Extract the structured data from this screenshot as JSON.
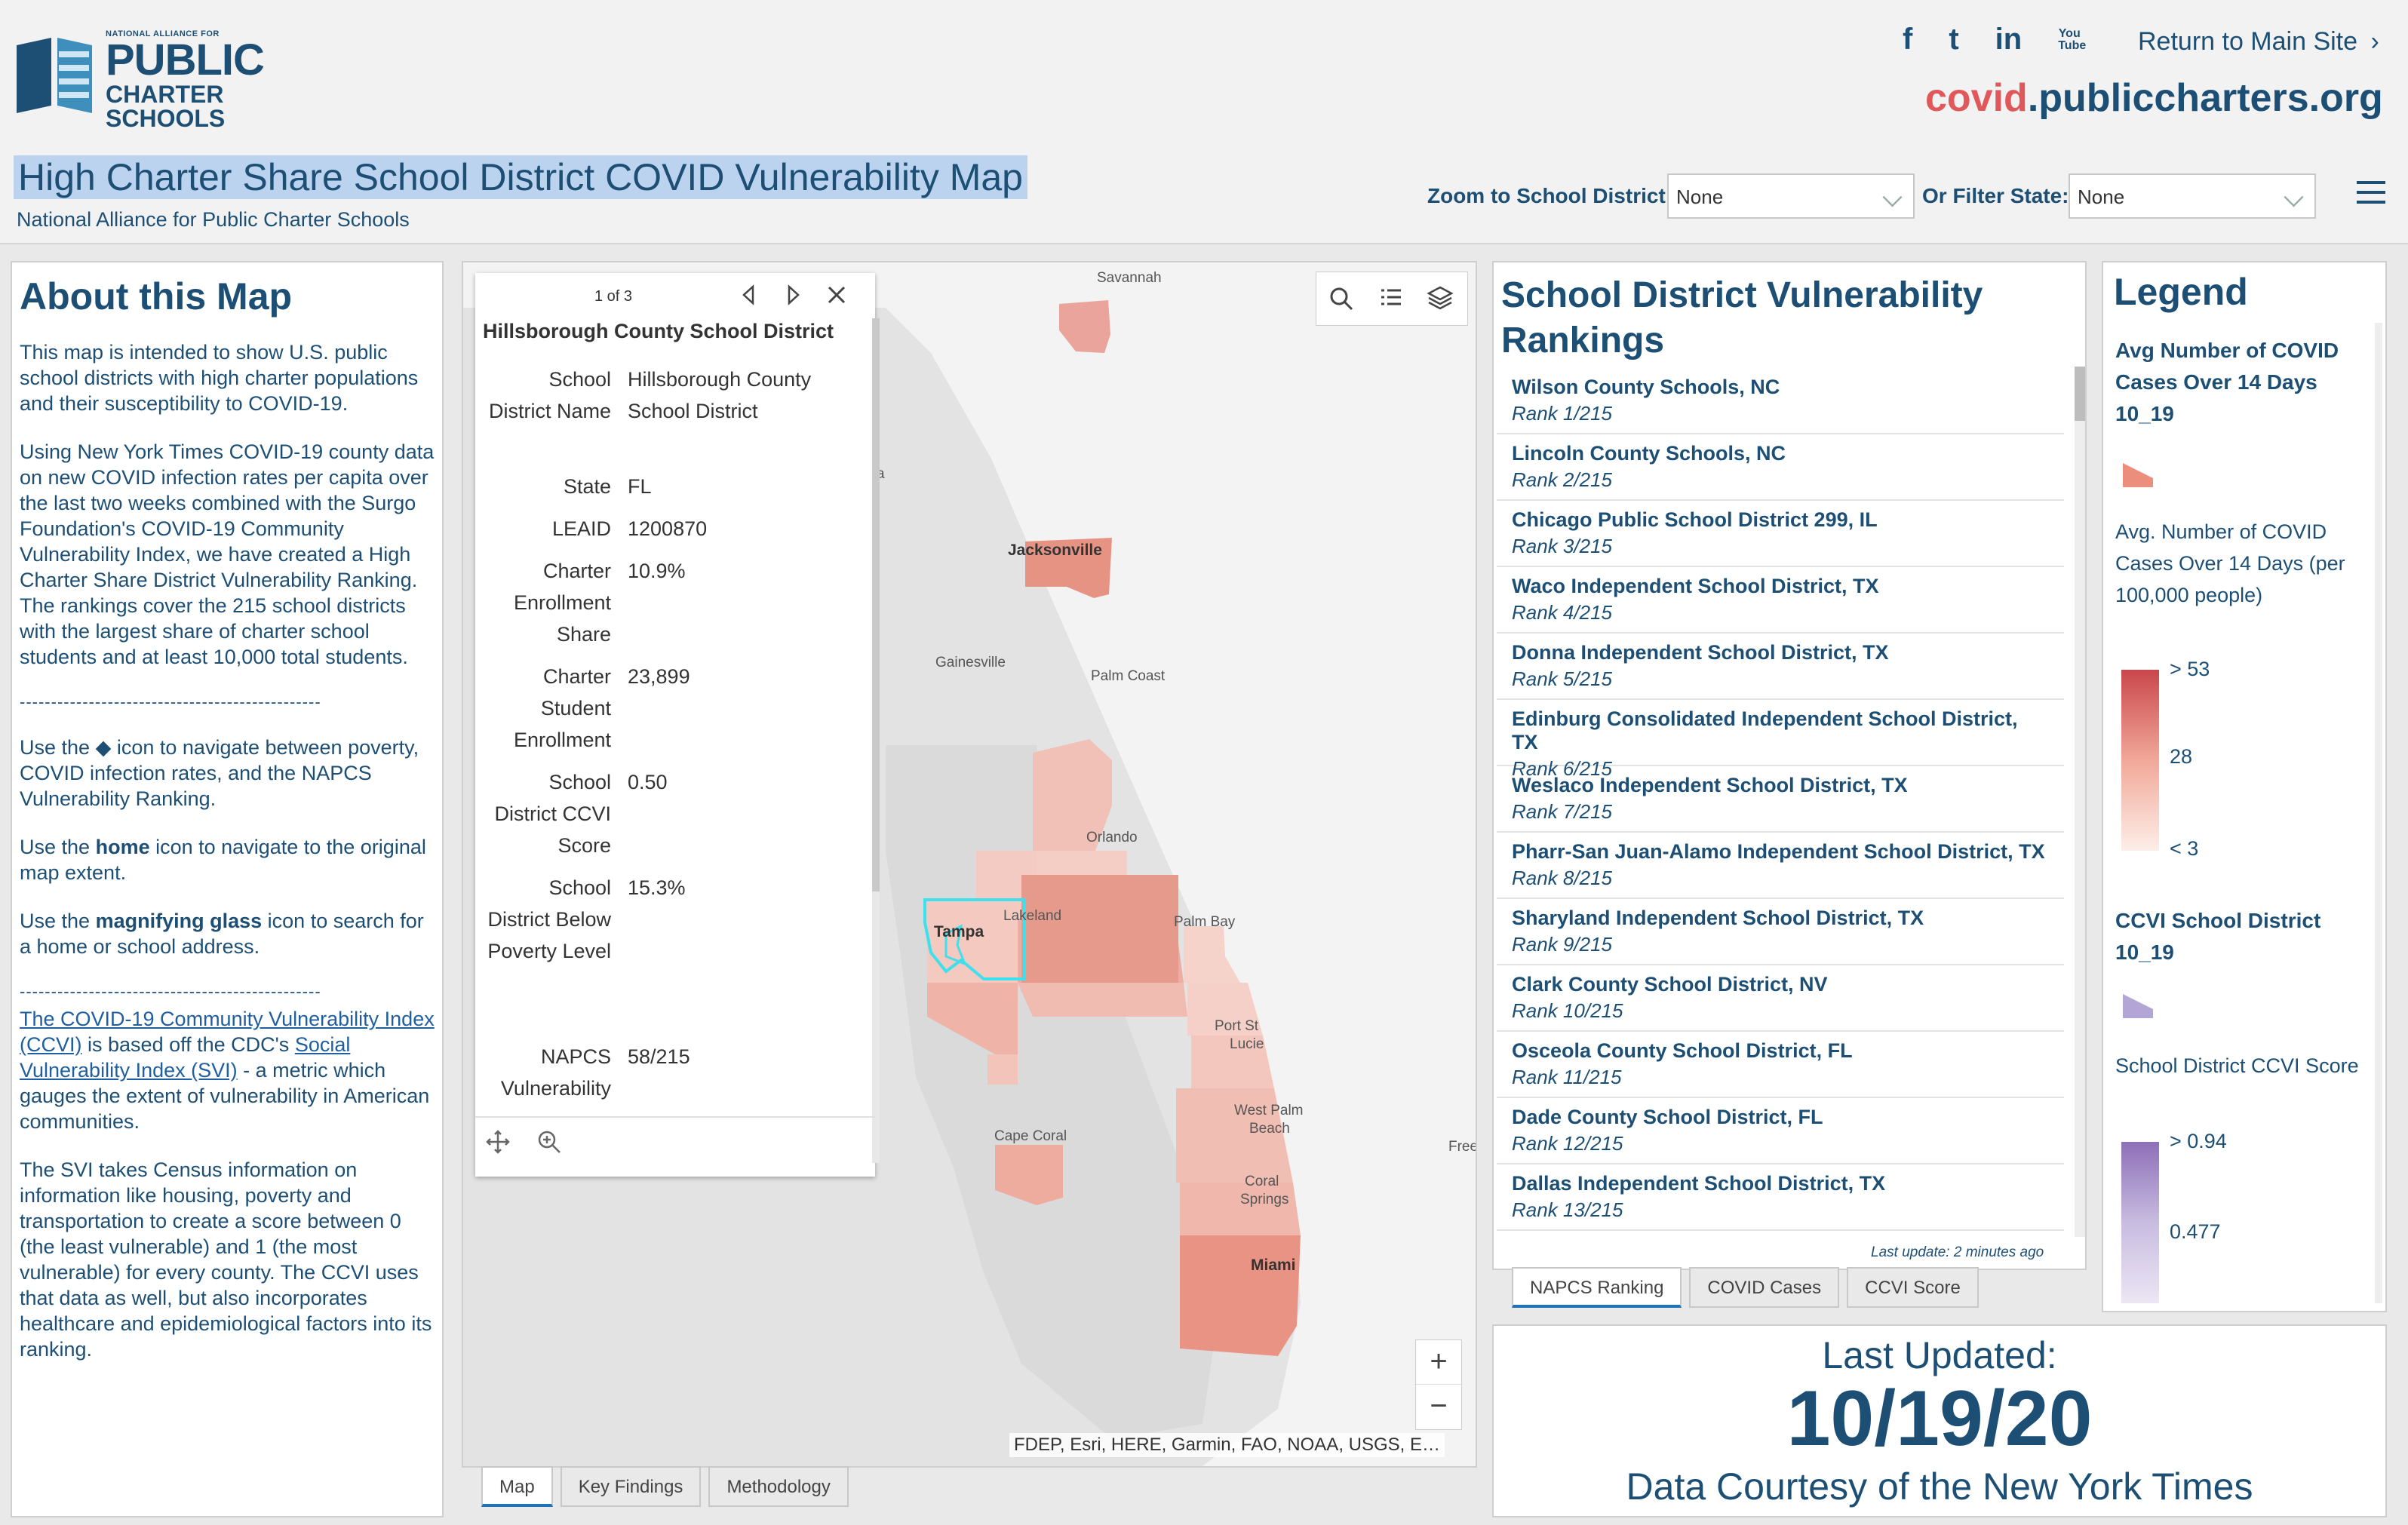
{
  "header": {
    "logo_small": "NATIONAL ALLIANCE FOR",
    "logo_line1": "PUBLIC",
    "logo_line2": "CHARTER",
    "logo_line3": "SCHOOLS",
    "title": "High Charter Share School District COVID Vulnerability Map",
    "subtitle": "National Alliance for Public Charter Schools",
    "social": {
      "facebook": "f",
      "twitter": "t",
      "linkedin": "in",
      "youtube": "You Tube"
    },
    "return_link": "Return to Main Site",
    "site_url_part1": "covid",
    "site_url_part2": ".publiccharters.org",
    "zoom_label": "Zoom to School District:",
    "zoom_value": "None",
    "filter_label": "Or Filter State:",
    "filter_value": "None"
  },
  "about": {
    "title": "About this Map",
    "p1": "This map is intended to show U.S. public school districts with high charter populations and their susceptibility to COVID-19.",
    "p2": "Using New York Times COVID-19 county data on new COVID infection rates per capita over the last two weeks combined with the Surgo Foundation's COVID-19 Community Vulnerability Index, we have created a High Charter Share District Vulnerability Ranking.  The rankings cover the 215 school districts with the largest share of charter school students and at least 10,000 total students.",
    "dashes": "------------------------------------------------",
    "p3a": "Use the",
    "p3b": "icon to navigate between poverty, COVID infection rates, and the NAPCS Vulnerability Ranking.",
    "p4a": "Use the",
    "p4b": "home",
    "p4c": "icon to navigate to the original map extent.",
    "p5a": "Use the",
    "p5b": "magnifying glass",
    "p5c": "icon to search for a home or school address.",
    "p6_link1": "The COVID-19 Community Vulnerability Index (CCVI)",
    "p6b": "is based off the CDC's",
    "p6_link2": "Social Vulnerability Index (SVI)",
    "p6c": "- a metric which gauges the extent of vulnerability in American communities.",
    "p7": "The SVI takes Census information on information like housing, poverty and transportation to create a score between 0 (the least vulnerable) and 1 (the most vulnerable) for every county. The CCVI uses that data as well, but also incorporates healthcare and epidemiological factors into its ranking."
  },
  "map": {
    "popup": {
      "pager": "1 of 3",
      "title": "Hillsborough County School District",
      "rows": [
        {
          "k": "School District Name",
          "v": "Hillsborough County School District"
        },
        {
          "k": "State",
          "v": "FL"
        },
        {
          "k": "LEAID",
          "v": "1200870"
        },
        {
          "k": "Charter Enrollment Share",
          "v": "10.9%"
        },
        {
          "k": "Charter Student Enrollment",
          "v": "23,899"
        },
        {
          "k": "School District CCVI Score",
          "v": "0.50"
        },
        {
          "k": "School District Below Poverty Level",
          "v": "15.3%"
        },
        {
          "k": "NAPCS Vulnerability Rank",
          "v": "58/215"
        }
      ]
    },
    "cities": {
      "savannah": "Savannah",
      "jacksonville": "Jacksonville",
      "gainesville": "Gainesville",
      "palm_coast": "Palm Coast",
      "orlando": "Orlando",
      "lakeland": "Lakeland",
      "tampa": "Tampa",
      "palm_bay": "Palm Bay",
      "port_st_lucie_1": "Port St",
      "port_st_lucie_2": "Lucie",
      "cape_coral": "Cape Coral",
      "west_palm_1": "West Palm",
      "west_palm_2": "Beach",
      "coral_1": "Coral",
      "coral_2": "Springs",
      "miami": "Miami",
      "edge_a": "a",
      "edge_free": "Free"
    },
    "zoom_in": "+",
    "zoom_out": "−",
    "attribution": "FDEP, Esri, HERE, Garmin, FAO, NOAA, USGS, E…",
    "tabs": [
      "Map",
      "Key Findings",
      "Methodology"
    ]
  },
  "rankings": {
    "title": "School District Vulnerability Rankings",
    "items": [
      {
        "name": "Wilson County Schools, NC",
        "rank": "Rank 1/215"
      },
      {
        "name": "Lincoln County Schools, NC",
        "rank": "Rank 2/215"
      },
      {
        "name": "Chicago Public School District 299, IL",
        "rank": "Rank 3/215"
      },
      {
        "name": "Waco Independent School District, TX",
        "rank": "Rank 4/215"
      },
      {
        "name": "Donna Independent School District, TX",
        "rank": "Rank 5/215"
      },
      {
        "name": "Edinburg Consolidated Independent School District, TX",
        "rank": "Rank 6/215"
      },
      {
        "name": "Weslaco Independent School District, TX",
        "rank": "Rank 7/215"
      },
      {
        "name": "Pharr-San Juan-Alamo Independent School District, TX",
        "rank": "Rank 8/215"
      },
      {
        "name": "Sharyland Independent School District, TX",
        "rank": "Rank 9/215"
      },
      {
        "name": "Clark County School District, NV",
        "rank": "Rank 10/215"
      },
      {
        "name": "Osceola County School District, FL",
        "rank": "Rank 11/215"
      },
      {
        "name": "Dade County School District, FL",
        "rank": "Rank 12/215"
      },
      {
        "name": "Dallas Independent School District, TX",
        "rank": "Rank 13/215"
      }
    ],
    "last_update": "Last update: 2 minutes ago",
    "tabs": [
      "NAPCS Ranking",
      "COVID Cases",
      "CCVI Score"
    ]
  },
  "legend": {
    "title": "Legend",
    "layer1_title": "Avg Number of COVID Cases Over 14 Days 10_19",
    "layer1_field": "Avg. Number of COVID Cases Over 14 Days (per 100,000 people)",
    "layer1_max": "> 53",
    "layer1_mid": "28",
    "layer1_min": "< 3",
    "layer2_title": "CCVI School District 10_19",
    "layer2_field": "School District CCVI Score",
    "layer2_max": "> 0.94",
    "layer2_mid": "0.477",
    "colors": {
      "covid_high": "#c9474b",
      "covid_low": "#fdeee9",
      "ccvi_high": "#8e6fb8",
      "ccvi_low": "#ece6f4",
      "brand_blue": "#1d4f75",
      "brand_red": "#e0585a"
    }
  },
  "updated": {
    "label": "Last Updated:",
    "date": "10/19/20",
    "credit": "Data Courtesy of the New York Times"
  }
}
